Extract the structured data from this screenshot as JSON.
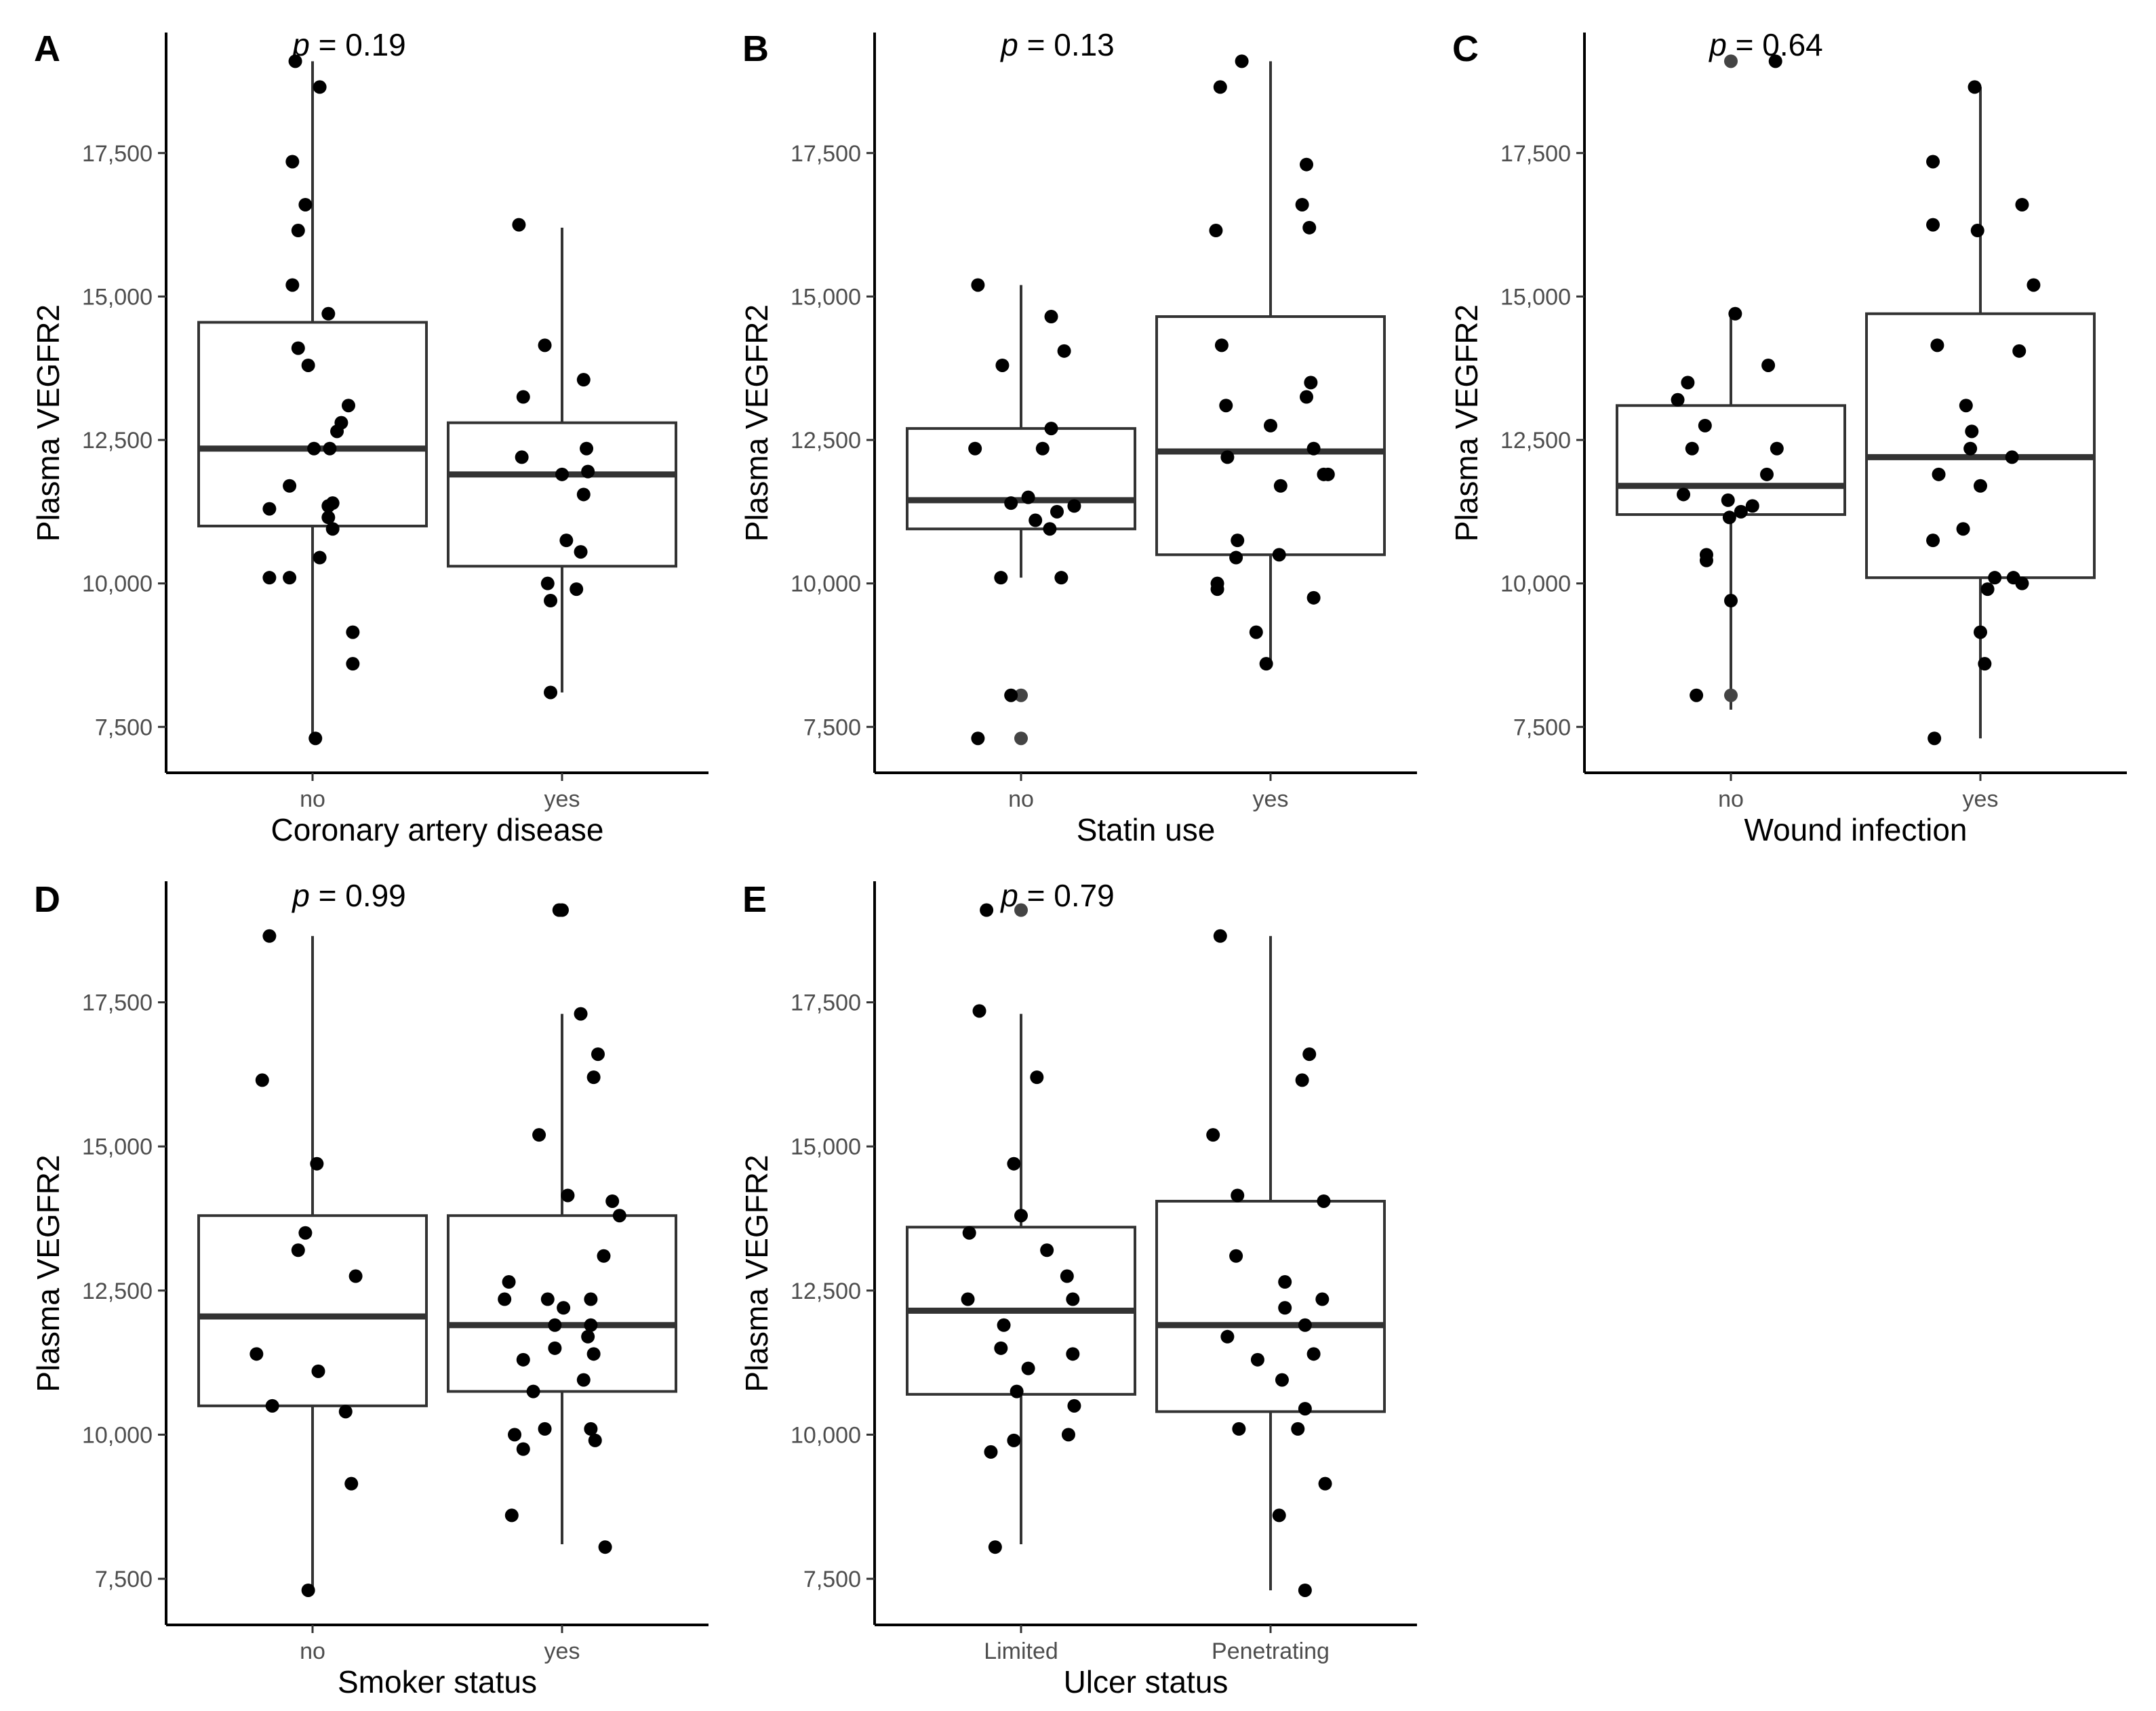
{
  "figure": {
    "ylabel": "Plasma VEGFR2",
    "yticks": [
      7500,
      10000,
      12500,
      15000,
      17500
    ],
    "ytick_labels": [
      "7,500",
      "10,000",
      "12,500",
      "15,000",
      "17,500"
    ]
  },
  "chart_data": [
    {
      "panel": "A",
      "type": "box",
      "p_label": "p",
      "p_rest": " = 0.19",
      "xlabel": "Coronary artery disease",
      "ylabel": "Plasma VEGFR2",
      "ylim": [
        6700,
        19600
      ],
      "groups": [
        {
          "label": "no",
          "q1": 11000,
          "median": 12350,
          "q3": 14550,
          "whisker_low": 7300,
          "whisker_high": 19100,
          "points": [
            [
              -0.12,
              19100
            ],
            [
              0.05,
              18650
            ],
            [
              -0.14,
              17350
            ],
            [
              -0.05,
              16600
            ],
            [
              -0.1,
              16150
            ],
            [
              -0.14,
              15200
            ],
            [
              0.11,
              14700
            ],
            [
              -0.1,
              14100
            ],
            [
              -0.03,
              13800
            ],
            [
              0.25,
              13100
            ],
            [
              0.2,
              12800
            ],
            [
              0.17,
              12650
            ],
            [
              0.12,
              12350
            ],
            [
              0.01,
              12350
            ],
            [
              -0.16,
              11700
            ],
            [
              -0.3,
              11300
            ],
            [
              0.14,
              11400
            ],
            [
              0.11,
              11350
            ],
            [
              0.11,
              11150
            ],
            [
              0.14,
              10950
            ],
            [
              0.05,
              10450
            ],
            [
              -0.3,
              10100
            ],
            [
              -0.16,
              10100
            ],
            [
              0.28,
              9150
            ],
            [
              0.28,
              8600
            ],
            [
              0.02,
              7300
            ]
          ]
        },
        {
          "label": "yes",
          "q1": 10300,
          "median": 11900,
          "q3": 12800,
          "whisker_low": 8100,
          "whisker_high": 16200,
          "points": [
            [
              -0.3,
              16250
            ],
            [
              -0.12,
              14150
            ],
            [
              -0.27,
              13250
            ],
            [
              0.15,
              13550
            ],
            [
              0.17,
              12350
            ],
            [
              -0.28,
              12200
            ],
            [
              0.0,
              11900
            ],
            [
              0.18,
              11950
            ],
            [
              0.15,
              11550
            ],
            [
              0.03,
              10750
            ],
            [
              0.13,
              10550
            ],
            [
              -0.1,
              10000
            ],
            [
              0.1,
              9900
            ],
            [
              -0.08,
              9700
            ],
            [
              -0.08,
              8100
            ]
          ]
        }
      ]
    },
    {
      "panel": "B",
      "type": "box",
      "p_label": "p",
      "p_rest": " = 0.13",
      "xlabel": "Statin use",
      "ylabel": "Plasma VEGFR2",
      "ylim": [
        6700,
        19600
      ],
      "groups": [
        {
          "label": "no",
          "q1": 10950,
          "median": 11450,
          "q3": 12700,
          "whisker_low": 10100,
          "whisker_high": 15200,
          "points": [
            [
              -0.3,
              15200
            ],
            [
              0.21,
              14650
            ],
            [
              0.3,
              14050
            ],
            [
              -0.13,
              13800
            ],
            [
              0.21,
              12700
            ],
            [
              -0.32,
              12350
            ],
            [
              0.15,
              12350
            ],
            [
              0.05,
              11500
            ],
            [
              -0.07,
              11400
            ],
            [
              0.37,
              11350
            ],
            [
              0.25,
              11250
            ],
            [
              0.1,
              11100
            ],
            [
              0.2,
              10950
            ],
            [
              -0.14,
              10100
            ],
            [
              0.28,
              10100
            ],
            [
              -0.07,
              8050
            ],
            [
              -0.3,
              7300
            ]
          ],
          "dim_points": [
            [
              0.0,
              8050
            ],
            [
              0.0,
              7300
            ]
          ]
        },
        {
          "label": "yes",
          "q1": 10500,
          "median": 12300,
          "q3": 14650,
          "whisker_low": 8600,
          "whisker_high": 19100,
          "points": [
            [
              -0.2,
              19100
            ],
            [
              -0.35,
              18650
            ],
            [
              0.25,
              17300
            ],
            [
              0.22,
              16600
            ],
            [
              0.27,
              16200
            ],
            [
              -0.38,
              16150
            ],
            [
              -0.34,
              14150
            ],
            [
              -0.31,
              13100
            ],
            [
              0.28,
              13500
            ],
            [
              0.25,
              13250
            ],
            [
              -0.3,
              12200
            ],
            [
              0.3,
              12350
            ],
            [
              0.0,
              12750
            ],
            [
              0.07,
              11700
            ],
            [
              -0.23,
              10750
            ],
            [
              -0.24,
              10450
            ],
            [
              0.06,
              10500
            ],
            [
              0.37,
              11900
            ],
            [
              0.4,
              11900
            ],
            [
              0.3,
              9750
            ],
            [
              -0.37,
              10000
            ],
            [
              -0.37,
              9900
            ],
            [
              -0.1,
              9150
            ],
            [
              -0.03,
              8600
            ]
          ]
        }
      ]
    },
    {
      "panel": "C",
      "type": "box",
      "p_label": "p",
      "p_rest": " = 0.64",
      "xlabel": "Wound infection",
      "ylabel": "Plasma VEGFR2",
      "ylim": [
        6700,
        19600
      ],
      "groups": [
        {
          "label": "no",
          "q1": 11200,
          "median": 11700,
          "q3": 13100,
          "whisker_low": 7800,
          "whisker_high": 14700,
          "points": [
            [
              0.31,
              19100
            ],
            [
              0.03,
              14700
            ],
            [
              -0.37,
              13200
            ],
            [
              -0.3,
              13500
            ],
            [
              -0.18,
              12750
            ],
            [
              0.26,
              13800
            ],
            [
              -0.27,
              12350
            ],
            [
              0.32,
              12350
            ],
            [
              0.25,
              11900
            ],
            [
              -0.33,
              11550
            ],
            [
              -0.02,
              11450
            ],
            [
              0.07,
              11250
            ],
            [
              0.15,
              11350
            ],
            [
              -0.01,
              11150
            ],
            [
              -0.17,
              10500
            ],
            [
              -0.17,
              10400
            ],
            [
              0.0,
              9700
            ],
            [
              -0.24,
              8050
            ]
          ],
          "dim_points": [
            [
              0.0,
              19100
            ],
            [
              0.0,
              8050
            ]
          ]
        },
        {
          "label": "yes",
          "q1": 10100,
          "median": 12200,
          "q3": 14700,
          "whisker_low": 7300,
          "whisker_high": 18650,
          "points": [
            [
              -0.04,
              18650
            ],
            [
              -0.33,
              17350
            ],
            [
              -0.33,
              16250
            ],
            [
              0.29,
              16600
            ],
            [
              -0.02,
              16150
            ],
            [
              0.37,
              15200
            ],
            [
              -0.3,
              14150
            ],
            [
              0.27,
              14050
            ],
            [
              -0.1,
              13100
            ],
            [
              -0.06,
              12650
            ],
            [
              -0.07,
              12350
            ],
            [
              -0.29,
              11900
            ],
            [
              0.0,
              11700
            ],
            [
              0.22,
              12200
            ],
            [
              -0.12,
              10950
            ],
            [
              -0.33,
              10750
            ],
            [
              0.1,
              10100
            ],
            [
              0.23,
              10100
            ],
            [
              0.29,
              10000
            ],
            [
              0.05,
              9900
            ],
            [
              0.0,
              9150
            ],
            [
              0.03,
              8600
            ],
            [
              -0.32,
              7300
            ]
          ]
        }
      ]
    },
    {
      "panel": "D",
      "type": "box",
      "p_label": "p",
      "p_rest": " = 0.99",
      "xlabel": "Smoker status",
      "ylabel": "Plasma VEGFR2",
      "ylim": [
        6700,
        19600
      ],
      "groups": [
        {
          "label": "no",
          "q1": 10500,
          "median": 12050,
          "q3": 13800,
          "whisker_low": 7300,
          "whisker_high": 18650,
          "points": [
            [
              -0.3,
              18650
            ],
            [
              -0.35,
              16150
            ],
            [
              0.03,
              14700
            ],
            [
              -0.05,
              13500
            ],
            [
              -0.1,
              13200
            ],
            [
              0.3,
              12750
            ],
            [
              -0.39,
              11400
            ],
            [
              0.04,
              11100
            ],
            [
              -0.28,
              10500
            ],
            [
              0.23,
              10400
            ],
            [
              0.27,
              9150
            ],
            [
              -0.03,
              7300
            ]
          ]
        },
        {
          "label": "yes",
          "q1": 10750,
          "median": 11900,
          "q3": 13800,
          "whisker_low": 8100,
          "whisker_high": 17300,
          "points": [
            [
              -0.02,
              19100
            ],
            [
              0.0,
              19100
            ],
            [
              0.13,
              17300
            ],
            [
              0.25,
              16600
            ],
            [
              0.22,
              16200
            ],
            [
              -0.16,
              15200
            ],
            [
              0.04,
              14150
            ],
            [
              0.35,
              14050
            ],
            [
              0.4,
              13800
            ],
            [
              0.29,
              13100
            ],
            [
              -0.37,
              12650
            ],
            [
              -0.4,
              12350
            ],
            [
              -0.1,
              12350
            ],
            [
              0.2,
              12350
            ],
            [
              0.01,
              12200
            ],
            [
              -0.05,
              11900
            ],
            [
              0.2,
              11900
            ],
            [
              -0.27,
              11300
            ],
            [
              -0.05,
              11500
            ],
            [
              0.18,
              11700
            ],
            [
              0.22,
              11400
            ],
            [
              0.15,
              10950
            ],
            [
              -0.2,
              10750
            ],
            [
              -0.33,
              10000
            ],
            [
              -0.27,
              9750
            ],
            [
              -0.12,
              10100
            ],
            [
              0.2,
              10100
            ],
            [
              0.23,
              9900
            ],
            [
              -0.35,
              8600
            ],
            [
              0.3,
              8050
            ]
          ]
        }
      ]
    },
    {
      "panel": "E",
      "type": "box",
      "p_label": "p",
      "p_rest": " = 0.79",
      "xlabel": "Ulcer status",
      "ylabel": "Plasma VEGFR2",
      "ylim": [
        6700,
        19600
      ],
      "groups": [
        {
          "label": "Limited",
          "q1": 10700,
          "median": 12150,
          "q3": 13600,
          "whisker_low": 8100,
          "whisker_high": 17300,
          "points": [
            [
              -0.24,
              19100
            ],
            [
              -0.29,
              17350
            ],
            [
              0.11,
              16200
            ],
            [
              -0.05,
              14700
            ],
            [
              0.0,
              13800
            ],
            [
              -0.36,
              13500
            ],
            [
              0.18,
              13200
            ],
            [
              0.32,
              12750
            ],
            [
              -0.37,
              12350
            ],
            [
              0.36,
              12350
            ],
            [
              -0.12,
              11900
            ],
            [
              -0.14,
              11500
            ],
            [
              0.05,
              11150
            ],
            [
              0.36,
              11400
            ],
            [
              -0.03,
              10750
            ],
            [
              0.37,
              10500
            ],
            [
              0.33,
              10000
            ],
            [
              -0.05,
              9900
            ],
            [
              -0.21,
              9700
            ],
            [
              -0.18,
              8050
            ]
          ],
          "dim_points": [
            [
              0.0,
              19100
            ]
          ]
        },
        {
          "label": "Penetrating",
          "q1": 10400,
          "median": 11900,
          "q3": 14050,
          "whisker_low": 7300,
          "whisker_high": 18650,
          "points": [
            [
              -0.35,
              18650
            ],
            [
              0.27,
              16600
            ],
            [
              0.22,
              16150
            ],
            [
              -0.4,
              15200
            ],
            [
              -0.23,
              14150
            ],
            [
              0.37,
              14050
            ],
            [
              -0.24,
              13100
            ],
            [
              0.1,
              12650
            ],
            [
              0.36,
              12350
            ],
            [
              0.1,
              12200
            ],
            [
              0.24,
              11900
            ],
            [
              -0.3,
              11700
            ],
            [
              -0.09,
              11300
            ],
            [
              0.3,
              11400
            ],
            [
              0.08,
              10950
            ],
            [
              0.24,
              10450
            ],
            [
              -0.22,
              10100
            ],
            [
              0.19,
              10100
            ],
            [
              0.38,
              9150
            ],
            [
              0.06,
              8600
            ],
            [
              0.24,
              7300
            ]
          ]
        }
      ]
    }
  ]
}
